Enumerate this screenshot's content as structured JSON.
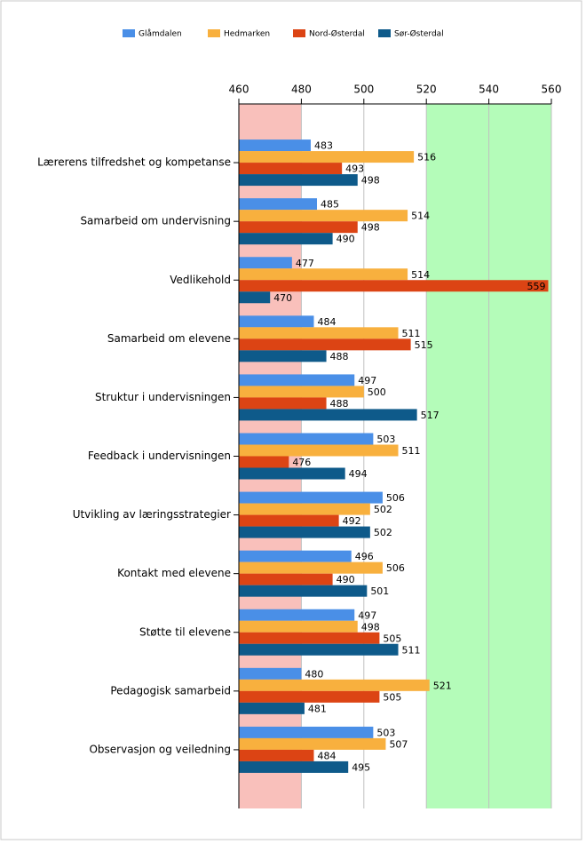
{
  "chart_data": {
    "type": "hbar",
    "categories": [
      "Lærerens tilfredshet og kompetanse",
      "Samarbeid om undervisning",
      "Vedlikehold",
      "Samarbeid om elevene",
      "Struktur i undervisningen",
      "Feedback i undervisningen",
      "Utvikling av læringsstrategier",
      "Kontakt med elevene",
      "Støtte til elevene",
      "Pedagogisk samarbeid",
      "Observasjon og veiledning"
    ],
    "series": [
      {
        "name": "Glåmdalen",
        "color": "#4a8fe7",
        "values": [
          483,
          485,
          477,
          484,
          497,
          503,
          506,
          496,
          497,
          480,
          503
        ]
      },
      {
        "name": "Hedmarken",
        "color": "#f8b03e",
        "values": [
          516,
          514,
          514,
          511,
          500,
          511,
          502,
          506,
          498,
          521,
          507
        ]
      },
      {
        "name": "Nord-Østerdal",
        "color": "#dc4414",
        "values": [
          493,
          498,
          559,
          515,
          488,
          476,
          492,
          490,
          505,
          505,
          484
        ]
      },
      {
        "name": "Sør-Østerdal",
        "color": "#0e5a8a",
        "values": [
          498,
          490,
          470,
          488,
          517,
          494,
          502,
          501,
          511,
          481,
          495
        ]
      }
    ],
    "xlim": [
      460,
      560
    ],
    "xticks": [
      460,
      480,
      500,
      520,
      540,
      560
    ],
    "grid": true,
    "bands": [
      {
        "from": 460,
        "to": 480,
        "color": "#f9c0bb"
      },
      {
        "from": 520,
        "to": 560,
        "color": "#b4fcb9"
      }
    ]
  }
}
